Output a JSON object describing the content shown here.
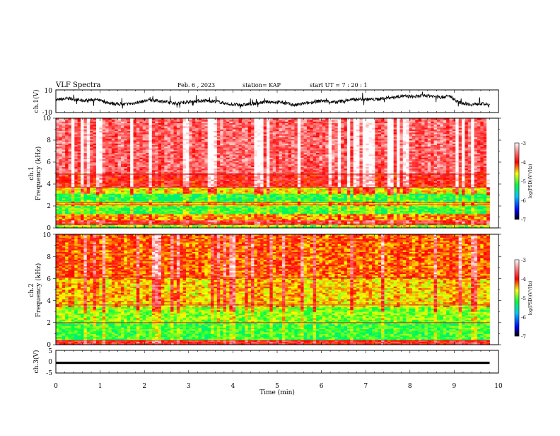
{
  "header": {
    "title": "VLF Spectra",
    "date": "Feb. 6 , 2023",
    "station": "station= KAP",
    "start": "start UT =  7 : 20 : 1"
  },
  "chart_data": [
    {
      "type": "line",
      "panel": "ch1-waveform",
      "ylabel": "ch.1(V)",
      "ylim": [
        -10,
        10
      ],
      "yticks": [
        "10",
        "-10"
      ],
      "xlim": [
        0,
        10
      ],
      "duration_min": 9.8,
      "trend": [
        [
          0.0,
          1.0
        ],
        [
          0.3,
          2.5
        ],
        [
          0.6,
          0.5
        ],
        [
          0.9,
          1.5
        ],
        [
          1.2,
          -1.5
        ],
        [
          1.5,
          -3.0
        ],
        [
          1.8,
          -1.5
        ],
        [
          2.1,
          1.0
        ],
        [
          2.4,
          0.0
        ],
        [
          2.7,
          -2.0
        ],
        [
          3.0,
          -0.5
        ],
        [
          3.3,
          0.5
        ],
        [
          3.6,
          0.0
        ],
        [
          3.9,
          -2.5
        ],
        [
          4.2,
          -3.5
        ],
        [
          4.5,
          -2.0
        ],
        [
          4.8,
          -0.5
        ],
        [
          5.1,
          -1.0
        ],
        [
          5.4,
          -3.5
        ],
        [
          5.7,
          -1.5
        ],
        [
          6.0,
          0.5
        ],
        [
          6.3,
          -1.0
        ],
        [
          6.6,
          1.0
        ],
        [
          6.9,
          2.0
        ],
        [
          7.2,
          1.5
        ],
        [
          7.5,
          3.0
        ],
        [
          7.8,
          4.5
        ],
        [
          8.1,
          4.0
        ],
        [
          8.4,
          5.0
        ],
        [
          8.7,
          3.5
        ],
        [
          8.9,
          4.5
        ],
        [
          9.1,
          -1.0
        ],
        [
          9.4,
          -3.0
        ],
        [
          9.6,
          -2.0
        ],
        [
          9.8,
          -3.5
        ]
      ]
    },
    {
      "type": "heatmap",
      "panel": "ch1-spectrogram",
      "ylabel_top": "ch.1",
      "ylabel": "Frequency (kHz)",
      "ylim": [
        0,
        10
      ],
      "yticks": [
        "0",
        "2",
        "4",
        "6",
        "8",
        "10"
      ],
      "xlim": [
        0,
        10
      ],
      "duration_min": 9.8,
      "levels_by_band": [
        {
          "f": [
            0.0,
            0.3
          ],
          "level": -4.9
        },
        {
          "f": [
            0.3,
            0.7
          ],
          "level": -3.8
        },
        {
          "f": [
            0.7,
            1.3
          ],
          "level": -4.4
        },
        {
          "f": [
            1.3,
            2.0
          ],
          "level": -5.1
        },
        {
          "f": [
            2.0,
            2.5
          ],
          "level": -4.6
        },
        {
          "f": [
            2.5,
            3.2
          ],
          "level": -5.2
        },
        {
          "f": [
            3.2,
            3.7
          ],
          "level": -4.6
        },
        {
          "f": [
            3.7,
            5.0
          ],
          "level": -3.9
        },
        {
          "f": [
            5.0,
            10.0
          ],
          "level": -3.6
        }
      ],
      "colorbar": {
        "label": "log(PSD)(V²/Hz)",
        "range": [
          -7,
          -3
        ],
        "ticks": [
          "-3",
          "-4",
          "-5",
          "-6",
          "-7"
        ]
      }
    },
    {
      "type": "heatmap",
      "panel": "ch2-spectrogram",
      "ylabel_top": "ch.2",
      "ylabel": "Frequency (kHz)",
      "ylim": [
        0,
        10
      ],
      "yticks": [
        "0",
        "2",
        "4",
        "6",
        "8",
        "10"
      ],
      "xlim": [
        0,
        10
      ],
      "duration_min": 9.8,
      "levels_by_band": [
        {
          "f": [
            0.0,
            0.4
          ],
          "level": -3.9
        },
        {
          "f": [
            0.4,
            2.0
          ],
          "level": -5.1
        },
        {
          "f": [
            2.0,
            3.5
          ],
          "level": -4.9
        },
        {
          "f": [
            3.5,
            6.0
          ],
          "level": -4.5
        },
        {
          "f": [
            6.0,
            10.0
          ],
          "level": -4.2
        }
      ],
      "colorbar": {
        "label": "log(PSD)(V²/Hz)",
        "range": [
          -7,
          -3
        ],
        "ticks": [
          "-3",
          "-4",
          "-5",
          "-6",
          "-7"
        ]
      }
    },
    {
      "type": "line",
      "panel": "ch3-waveform",
      "ylabel": "ch.3(V)",
      "ylim": [
        -5,
        5
      ],
      "yticks": [
        "5",
        "0",
        "-5"
      ],
      "xlim": [
        0,
        10
      ],
      "duration_min": 9.8,
      "level_band": [
        -1.0,
        0.0
      ],
      "xlabel": "Time (min)",
      "xticks": [
        "0",
        "1",
        "2",
        "3",
        "4",
        "5",
        "6",
        "7",
        "8",
        "9",
        "10"
      ]
    }
  ]
}
